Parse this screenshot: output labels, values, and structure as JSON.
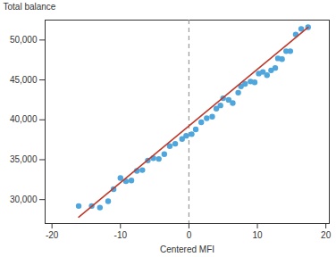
{
  "chart_data": {
    "type": "scatter",
    "x_label": "Centered MFI",
    "y_label": "Total balance",
    "x": [
      -16.1,
      -14.2,
      -13.0,
      -11.8,
      -11.0,
      -10.0,
      -9.2,
      -8.4,
      -7.6,
      -6.8,
      -6.0,
      -5.2,
      -4.4,
      -3.6,
      -2.8,
      -2.0,
      -1.0,
      -0.4,
      0.4,
      1.0,
      1.8,
      2.6,
      3.4,
      4.0,
      4.6,
      5.0,
      5.8,
      6.4,
      7.2,
      7.6,
      8.2,
      9.0,
      9.6,
      10.2,
      10.8,
      11.4,
      12.0,
      12.6,
      13.0,
      13.6,
      14.2,
      14.8,
      15.6,
      16.4,
      17.4
    ],
    "values": [
      29200,
      29200,
      29000,
      29800,
      31300,
      32700,
      32300,
      32400,
      33600,
      33700,
      34900,
      35200,
      35100,
      35700,
      36700,
      37000,
      37600,
      38000,
      38200,
      38800,
      39700,
      40200,
      40400,
      41400,
      41800,
      42700,
      42500,
      42100,
      43400,
      44200,
      44500,
      44800,
      44700,
      45800,
      46000,
      45600,
      46200,
      46500,
      47700,
      47600,
      48600,
      48600,
      50700,
      51400,
      51600
    ],
    "color": "#4ea6dc",
    "marker": "circle",
    "fit_line": {
      "x": [
        -16.1,
        17.4
      ],
      "values": [
        27800,
        51600
      ],
      "color": "#c0392b",
      "line_style": "solid"
    },
    "reference_line": {
      "x": 0,
      "color": "#999999",
      "line_style": "dashed"
    },
    "xlim": [
      -21,
      20.5
    ],
    "xticks": [
      -20,
      -10,
      0,
      10,
      20
    ],
    "ylim": [
      27000,
      52500
    ],
    "yticks": [
      {
        "value": 30000,
        "label": "30,000"
      },
      {
        "value": 35000,
        "label": "35,000"
      },
      {
        "value": 40000,
        "label": "40,000"
      },
      {
        "value": 45000,
        "label": "45,000"
      },
      {
        "value": 50000,
        "label": "50,000"
      }
    ],
    "grid": false
  }
}
